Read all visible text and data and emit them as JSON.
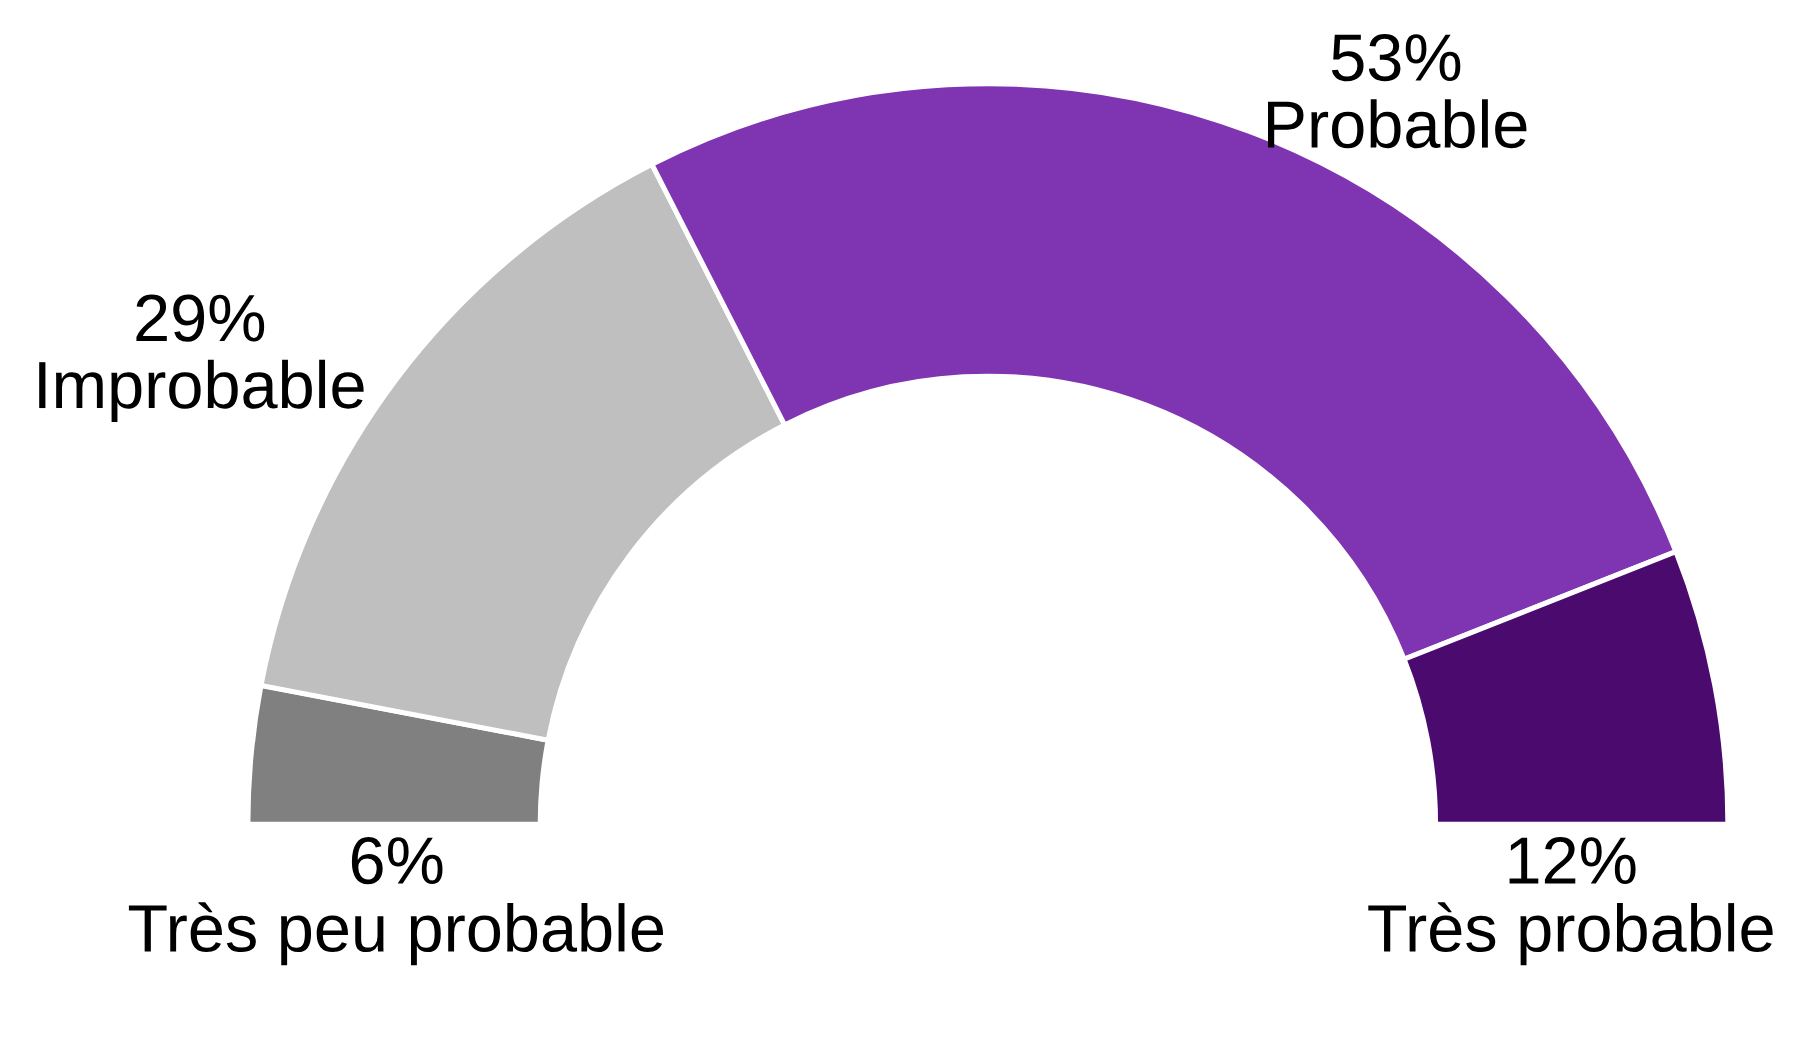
{
  "chart_data": {
    "type": "donut",
    "categories": [
      "Très peu probable",
      "Improbable",
      "Probable",
      "Très probable"
    ],
    "values": [
      6,
      29,
      53,
      12
    ],
    "value_labels": [
      "6%",
      "29%",
      "53%",
      "12%"
    ],
    "colors": [
      "#808080",
      "#bfbfbf",
      "#7f35b2",
      "#4b0a6e"
    ]
  }
}
